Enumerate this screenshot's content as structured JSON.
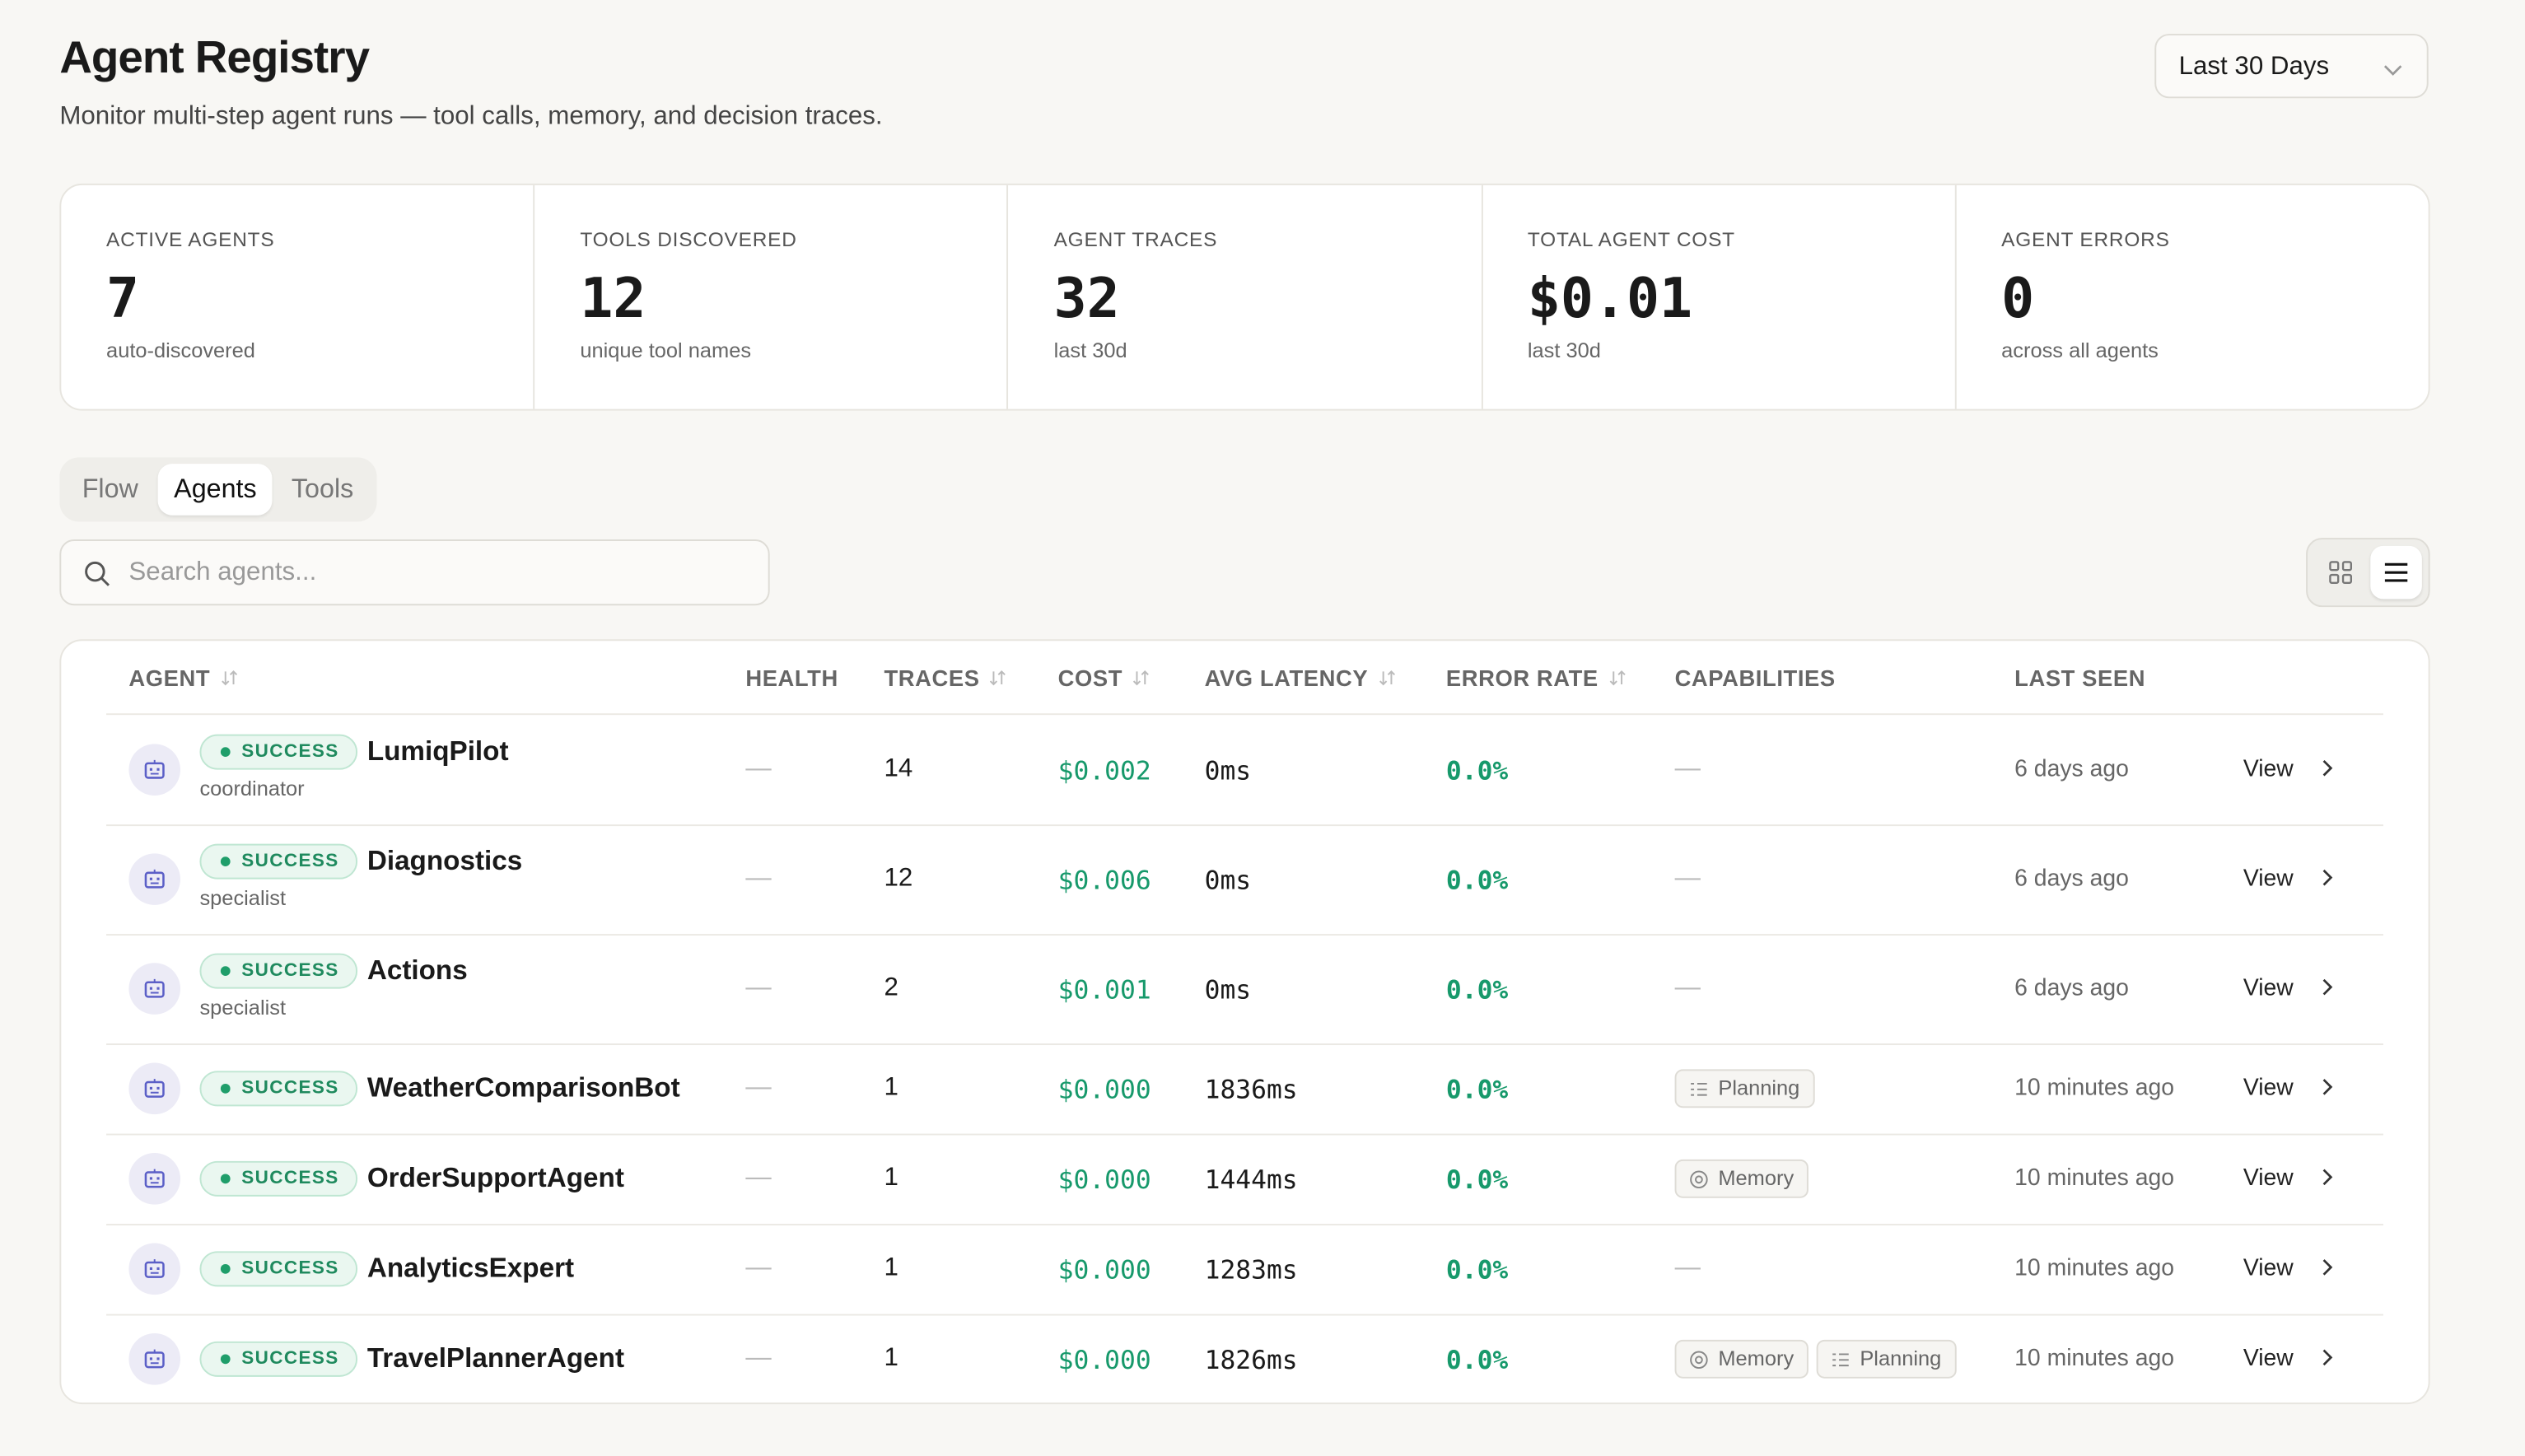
{
  "header": {
    "title": "Agent Registry",
    "subtitle": "Monitor multi-step agent runs — tool calls, memory, and decision traces.",
    "date_range": "Last 30 Days"
  },
  "stats": [
    {
      "label": "ACTIVE AGENTS",
      "value": "7",
      "note": "auto-discovered"
    },
    {
      "label": "TOOLS DISCOVERED",
      "value": "12",
      "note": "unique tool names"
    },
    {
      "label": "AGENT TRACES",
      "value": "32",
      "note": "last 30d"
    },
    {
      "label": "TOTAL AGENT COST",
      "value": "$0.01",
      "note": "last 30d"
    },
    {
      "label": "AGENT ERRORS",
      "value": "0",
      "note": "across all agents"
    }
  ],
  "tabs": [
    {
      "label": "Flow",
      "active": false
    },
    {
      "label": "Agents",
      "active": true
    },
    {
      "label": "Tools",
      "active": false
    }
  ],
  "search": {
    "placeholder": "Search agents..."
  },
  "table": {
    "columns": [
      {
        "label": "AGENT",
        "sortable": true
      },
      {
        "label": "HEALTH",
        "sortable": false
      },
      {
        "label": "TRACES",
        "sortable": true
      },
      {
        "label": "COST",
        "sortable": true
      },
      {
        "label": "AVG LATENCY",
        "sortable": true
      },
      {
        "label": "ERROR RATE",
        "sortable": true
      },
      {
        "label": "CAPABILITIES",
        "sortable": false
      },
      {
        "label": "LAST SEEN",
        "sortable": false
      }
    ],
    "rows": [
      {
        "status": "SUCCESS",
        "name": "LumiqPilot",
        "role": "coordinator",
        "health": "—",
        "traces": "14",
        "cost": "$0.002",
        "latency": "0ms",
        "error_rate": "0.0%",
        "capabilities": "—",
        "last_seen": "6 days ago",
        "action": "View"
      },
      {
        "status": "SUCCESS",
        "name": "Diagnostics",
        "role": "specialist",
        "health": "—",
        "traces": "12",
        "cost": "$0.006",
        "latency": "0ms",
        "error_rate": "0.0%",
        "capabilities": "—",
        "last_seen": "6 days ago",
        "action": "View"
      },
      {
        "status": "SUCCESS",
        "name": "Actions",
        "role": "specialist",
        "health": "—",
        "traces": "2",
        "cost": "$0.001",
        "latency": "0ms",
        "error_rate": "0.0%",
        "capabilities": "—",
        "last_seen": "6 days ago",
        "action": "View"
      },
      {
        "status": "SUCCESS",
        "name": "WeatherComparisonBot",
        "health": "—",
        "traces": "1",
        "cost": "$0.000",
        "latency": "1836ms",
        "error_rate": "0.0%",
        "capabilities": [
          "Planning"
        ],
        "last_seen": "10 minutes ago",
        "action": "View"
      },
      {
        "status": "SUCCESS",
        "name": "OrderSupportAgent",
        "health": "—",
        "traces": "1",
        "cost": "$0.000",
        "latency": "1444ms",
        "error_rate": "0.0%",
        "capabilities": [
          "Memory"
        ],
        "last_seen": "10 minutes ago",
        "action": "View"
      },
      {
        "status": "SUCCESS",
        "name": "AnalyticsExpert",
        "health": "—",
        "traces": "1",
        "cost": "$0.000",
        "latency": "1283ms",
        "error_rate": "0.0%",
        "capabilities": "—",
        "last_seen": "10 minutes ago",
        "action": "View"
      },
      {
        "status": "SUCCESS",
        "name": "TravelPlannerAgent",
        "health": "—",
        "traces": "1",
        "cost": "$0.000",
        "latency": "1826ms",
        "error_rate": "0.0%",
        "capabilities": [
          "Memory",
          "Planning"
        ],
        "last_seen": "10 minutes ago",
        "action": "View"
      }
    ]
  }
}
